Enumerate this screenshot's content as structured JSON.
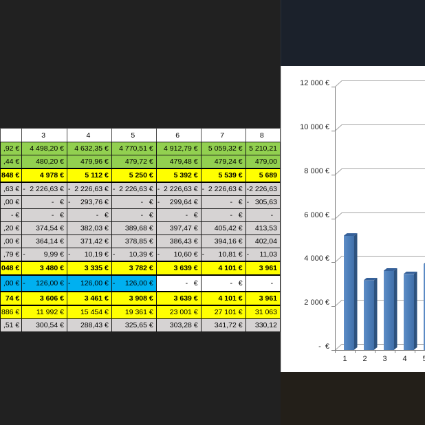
{
  "colors": {
    "background_left": "#212121",
    "background_top_right": "#1b212b",
    "background_bottom_right": "#231f19",
    "row_green": "#92d050",
    "row_yellow": "#ffff00",
    "row_gray": "#d6d3d3",
    "row_blue": "#00b0f0",
    "bar_fill": "#4d80bb"
  },
  "table": {
    "column_headers": [
      "",
      "3",
      "4",
      "5",
      "6",
      "7",
      "8"
    ],
    "rows": [
      {
        "style": "green",
        "cells": [
          ",92 €",
          "4 498,20 €",
          "4 632,35 €",
          "4 770,51 €",
          "4 912,79 €",
          "5 059,32 €",
          "5 210,21"
        ]
      },
      {
        "style": "green",
        "cells": [
          ",44 €",
          "480,20 €",
          "479,96 €",
          "479,72 €",
          "479,48 €",
          "479,24 €",
          "479,00"
        ]
      },
      {
        "style": "yellow-bold",
        "cells": [
          "848 €",
          "4 978 €",
          "5 112 €",
          "5 250 €",
          "5 392 €",
          "5 539 €",
          "5 689"
        ]
      },
      {
        "style": "gray",
        "cells": [
          ",63 €",
          "-|2 226,63 €",
          "-|2 226,63 €",
          "-|2 226,63 €",
          "-|2 226,63 €",
          "-|2 226,63 €",
          "-|2 226,63"
        ]
      },
      {
        "style": "gray",
        "cells": [
          ",00 €",
          "-   €",
          "-|293,76 €",
          "-   €",
          "-|299,64 €",
          "-   €",
          "-|305,63"
        ]
      },
      {
        "style": "gray",
        "cells": [
          "- €",
          "-   €",
          "-   €",
          "-   €",
          "-   €",
          "-   €",
          "-  "
        ]
      },
      {
        "style": "gray",
        "cells": [
          ",20 €",
          "374,54 €",
          "382,03 €",
          "389,68 €",
          "397,47 €",
          "405,42 €",
          "413,53"
        ]
      },
      {
        "style": "gray",
        "cells": [
          ",00 €",
          "364,14 €",
          "371,42 €",
          "378,85 €",
          "386,43 €",
          "394,16 €",
          "402,04"
        ]
      },
      {
        "style": "gray",
        "cells": [
          ",79 €",
          "-|9,99 €",
          "-|10,19 €",
          "-|10,39 €",
          "-|10,60 €",
          "-|10,81 €",
          "-|11,03"
        ]
      },
      {
        "style": "yellow-bold",
        "cells": [
          "048 €",
          "3 480 €",
          "3 335 €",
          "3 782 €",
          "3 639 €",
          "4 101 €",
          "3 961"
        ]
      },
      {
        "style": "blue",
        "blue_cols": 4,
        "cells": [
          ",00 €",
          "-|126,00 €",
          "-|126,00 €",
          "-|126,00 €",
          "-   €",
          "-   €",
          "-  "
        ]
      },
      {
        "style": "yellow-bold",
        "cells": [
          "74 €",
          "3 606 €",
          "3 461 €",
          "3 908 €",
          "3 639 €",
          "4 101 €",
          "3 961"
        ]
      },
      {
        "style": "yellow",
        "cells": [
          "886 €",
          "11 992 €",
          "15 454 €",
          "19 361 €",
          "23 001 €",
          "27 101 €",
          "31 063"
        ]
      },
      {
        "style": "gray",
        "cells": [
          ",51 €",
          "300,54 €",
          "288,43 €",
          "325,65 €",
          "303,28 €",
          "341,72 €",
          "330,12"
        ]
      }
    ]
  },
  "chart_data": {
    "type": "bar",
    "style": "3d",
    "title": "",
    "x_labels": [
      "1",
      "2",
      "3",
      "4",
      "5"
    ],
    "values": [
      5200,
      3174,
      3606,
      3461,
      3908
    ],
    "y_axis": {
      "min": 0,
      "max": 12000,
      "step": 2000,
      "tick_labels": [
        "-  €",
        "2 000 €",
        "4 000 €",
        "6 000 €",
        "8 000 €",
        "10 000 €",
        "12 000 €"
      ]
    },
    "grid": true,
    "legend": false
  }
}
